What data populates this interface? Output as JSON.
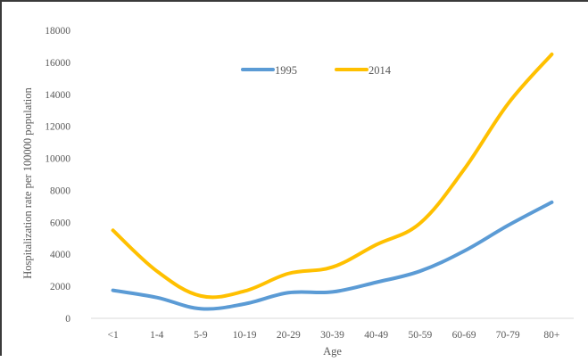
{
  "chart_data": {
    "type": "line",
    "title": "",
    "xlabel": "Age",
    "ylabel": "Hospitalization rate per 100000 population",
    "categories": [
      "<1",
      "1-4",
      "5-9",
      "10-19",
      "20-29",
      "30-39",
      "40-49",
      "50-59",
      "60-69",
      "70-79",
      "80+"
    ],
    "ylim": [
      0,
      18000
    ],
    "yticks": [
      "0",
      "2000",
      "4000",
      "6000",
      "8000",
      "10000",
      "12000",
      "14000",
      "16000",
      "18000"
    ],
    "grid": false,
    "legend_position": "top-center",
    "series": [
      {
        "name": "1995",
        "color": "#5b9bd5",
        "values": [
          1750,
          1300,
          600,
          900,
          1600,
          1650,
          2250,
          2950,
          4200,
          5800,
          7250
        ]
      },
      {
        "name": "2014",
        "color": "#ffc000",
        "values": [
          5500,
          2950,
          1400,
          1700,
          2800,
          3200,
          4600,
          5950,
          9300,
          13400,
          16500
        ]
      }
    ]
  }
}
